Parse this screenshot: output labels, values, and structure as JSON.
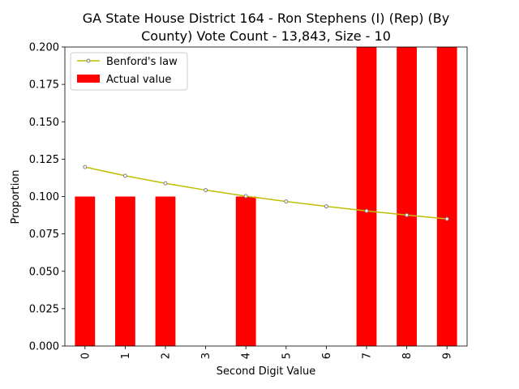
{
  "chart_data": {
    "type": "bar",
    "title_line1": "GA State House District 164 - Ron Stephens (I) (Rep) (By",
    "title_line2": "County) Vote Count - 13,843, Size - 10",
    "xlabel": "Second Digit Value",
    "ylabel": "Proportion",
    "categories": [
      "0",
      "1",
      "2",
      "3",
      "4",
      "5",
      "6",
      "7",
      "8",
      "9"
    ],
    "ylim": [
      0,
      0.2
    ],
    "yticks": [
      0.0,
      0.025,
      0.05,
      0.075,
      0.1,
      0.125,
      0.15,
      0.175,
      0.2
    ],
    "ytick_labels": [
      "0.000",
      "0.025",
      "0.050",
      "0.075",
      "0.100",
      "0.125",
      "0.150",
      "0.175",
      "0.200"
    ],
    "series": [
      {
        "name": "Actual value",
        "kind": "bar",
        "color": "#ff0000",
        "values": [
          0.1,
          0.1,
          0.1,
          0.0,
          0.1,
          0.0,
          0.0,
          0.2,
          0.2,
          0.2
        ]
      },
      {
        "name": "Benford's law",
        "kind": "line",
        "color": "#bfbf00",
        "values": [
          0.1197,
          0.1139,
          0.1088,
          0.1043,
          0.1003,
          0.0967,
          0.0934,
          0.0904,
          0.0876,
          0.085
        ]
      }
    ],
    "legend": {
      "position": "top-left",
      "line_label": "Benford's law",
      "bar_label": "Actual value"
    }
  }
}
